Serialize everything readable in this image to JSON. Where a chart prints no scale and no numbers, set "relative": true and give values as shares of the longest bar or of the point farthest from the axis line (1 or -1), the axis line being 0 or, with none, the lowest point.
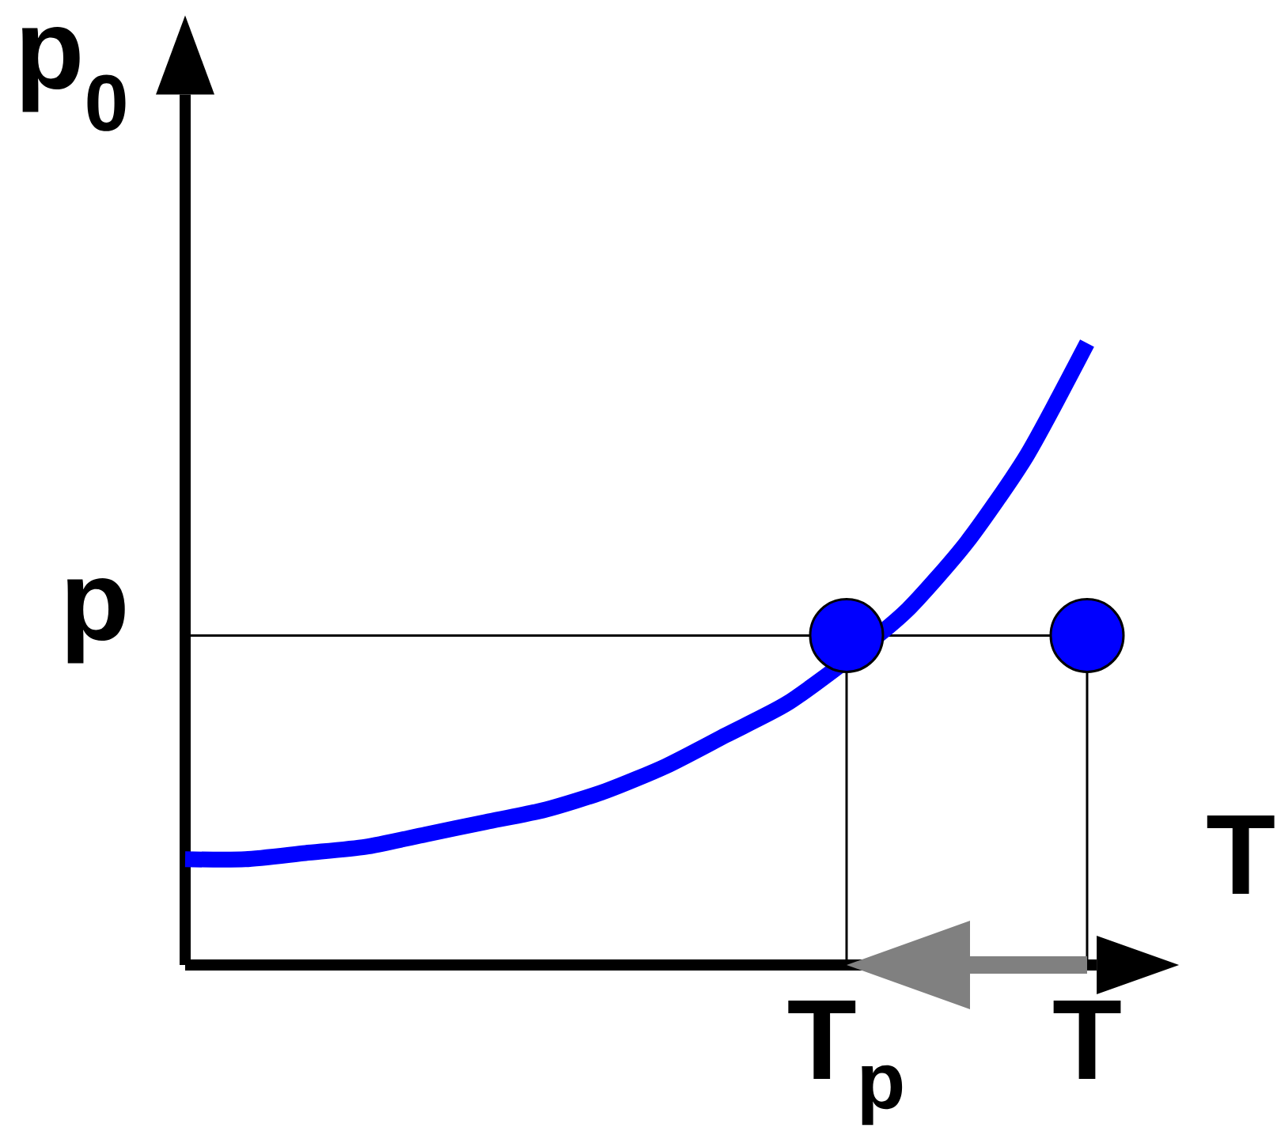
{
  "chart_data": {
    "type": "line",
    "relative": true,
    "xlabel": "T",
    "ylabel": "p$_{0}$",
    "categories": [
      null,
      null,
      null,
      null,
      null,
      null,
      null,
      null,
      null,
      null,
      null,
      "T$_{p}$",
      null,
      null,
      null,
      "T"
    ],
    "series": [
      {
        "color": "#0000ff",
        "values": [
          0.17,
          0.17,
          0.18,
          0.19,
          0.21,
          0.23,
          0.25,
          0.28,
          0.32,
          0.37,
          0.42,
          0.49,
          0.57,
          0.68,
          0.82,
          1
        ]
      },
      {
        "type": "lollipop",
        "color": "#0000ff",
        "marker": "circle",
        "values": [
          null,
          null,
          null,
          null,
          null,
          null,
          null,
          null,
          null,
          null,
          null,
          0.53,
          null,
          null,
          null,
          0.53
        ]
      }
    ],
    "ref_lines": [
      {
        "axis": "y",
        "value": 0.53,
        "label": "p",
        "color": "#000000"
      }
    ]
  }
}
